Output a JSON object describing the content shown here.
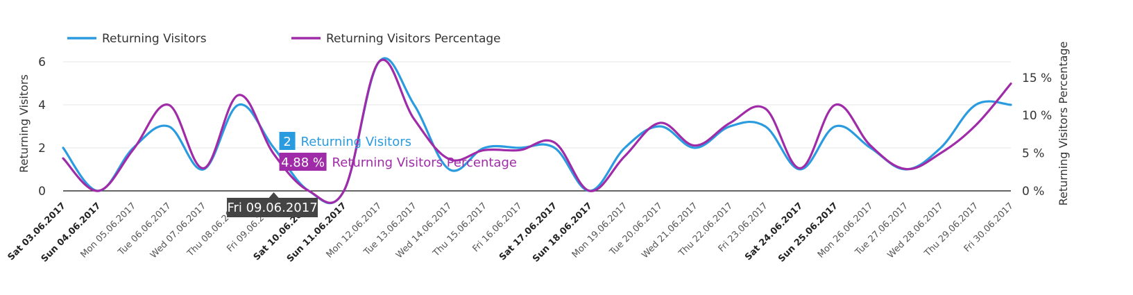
{
  "chart_data": {
    "type": "line",
    "categories": [
      "Sat 03.06.2017",
      "Sun 04.06.2017",
      "Mon 05.06.2017",
      "Tue 06.06.2017",
      "Wed 07.06.2017",
      "Thu 08.06.2017",
      "Fri 09.06.2017",
      "Sat 10.06.2017",
      "Sun 11.06.2017",
      "Mon 12.06.2017",
      "Tue 13.06.2017",
      "Wed 14.06.2017",
      "Thu 15.06.2017",
      "Fri 16.06.2017",
      "Sat 17.06.2017",
      "Sun 18.06.2017",
      "Mon 19.06.2017",
      "Tue 20.06.2017",
      "Wed 21.06.2017",
      "Thu 22.06.2017",
      "Fri 23.06.2017",
      "Sat 24.06.2017",
      "Sun 25.06.2017",
      "Mon 26.06.2017",
      "Tue 27.06.2017",
      "Wed 28.06.2017",
      "Thu 29.06.2017",
      "Fri 30.06.2017"
    ],
    "weekend_categories": [
      "Sat 03.06.2017",
      "Sun 04.06.2017",
      "Sat 10.06.2017",
      "Sun 11.06.2017",
      "Sat 17.06.2017",
      "Sun 18.06.2017",
      "Sat 24.06.2017",
      "Sun 25.06.2017"
    ],
    "series": [
      {
        "name": "Returning Visitors",
        "axis": "left",
        "color": "#2b9be0",
        "values": [
          2,
          0,
          2,
          3,
          1,
          4,
          2,
          0,
          0,
          6,
          4,
          1,
          2,
          2,
          2,
          0,
          2,
          3,
          2,
          3,
          3,
          1,
          3,
          2,
          1,
          2,
          4,
          4
        ]
      },
      {
        "name": "Returning Visitors Percentage",
        "axis": "right",
        "color": "#a02ba8",
        "values": [
          4.3,
          0,
          5.5,
          11.4,
          3.0,
          12.7,
          4.88,
          0,
          0,
          17.1,
          9.5,
          4.2,
          5.4,
          5.4,
          6.4,
          0,
          4.6,
          9.0,
          6.0,
          9.0,
          10.9,
          3.0,
          11.4,
          6.0,
          2.9,
          5.0,
          8.7,
          14.2
        ]
      }
    ],
    "left_axis": {
      "title": "Returning Visitors",
      "ylim": [
        0,
        6
      ],
      "ticks": [
        0,
        2,
        4,
        6
      ],
      "tick_labels": [
        "0",
        "2",
        "4",
        "6"
      ]
    },
    "right_axis": {
      "title": "Returning Visitors Percentage",
      "ylim": [
        0,
        17.1
      ],
      "ticks": [
        0,
        5,
        10,
        15
      ],
      "tick_labels": [
        "0 %",
        "5 %",
        "10 %",
        "15 %"
      ]
    },
    "grid": true,
    "legend_position": "top-left",
    "tooltip": {
      "category": "Fri 09.06.2017",
      "visitors_value": "2",
      "visitors_label": "Returning Visitors",
      "percentage_value": "4.88 %",
      "percentage_label": "Returning Visitors Percentage"
    }
  }
}
